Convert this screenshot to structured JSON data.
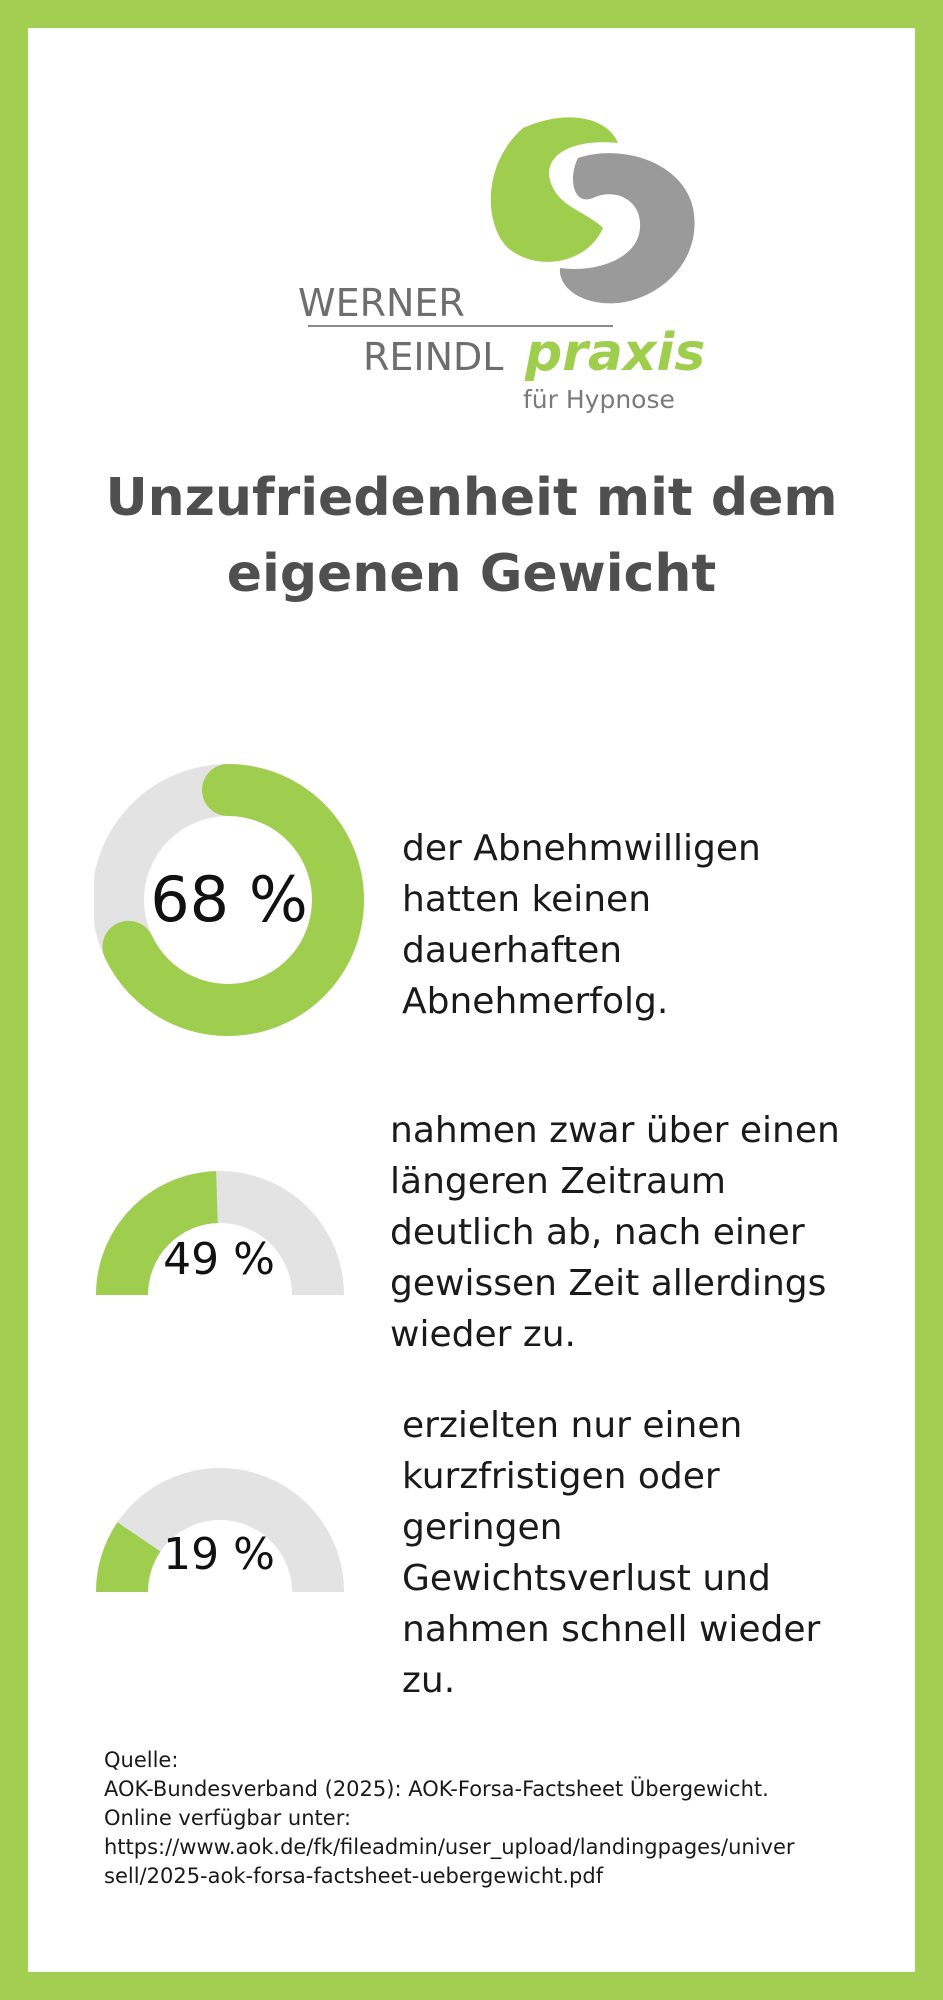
{
  "colors": {
    "border": "#a2cf52",
    "accent": "#9fce4f",
    "track": "#e3e3e3",
    "title": "#4f4f4f",
    "logo_gray": "#8a8a8a"
  },
  "logo": {
    "line1": "WERNER",
    "line2": "REINDL",
    "brand": "praxis",
    "tagline": "für Hypnose"
  },
  "title": {
    "line1": "Unzufriedenheit mit dem",
    "line2": "eigenen Gewicht"
  },
  "stats": [
    {
      "value": 68,
      "label": "68 %",
      "text": [
        "der Abnehmwilligen",
        "hatten keinen",
        "dauerhaften",
        "Abnehmerfolg."
      ]
    },
    {
      "value": 49,
      "label": "49 %",
      "text": [
        "nahmen zwar über einen",
        "längeren Zeitraum",
        "deutlich ab, nach einer",
        "gewissen Zeit allerdings",
        "wieder zu."
      ]
    },
    {
      "value": 19,
      "label": "19 %",
      "text": [
        "erzielten nur einen",
        "kurzfristigen oder",
        "geringen",
        "Gewichtsverlust und",
        "nahmen schnell wieder",
        "zu."
      ]
    }
  ],
  "source": {
    "heading": "Quelle:",
    "line1": "AOK-Bundesverband (2025): AOK-Forsa-Factsheet Übergewicht.",
    "line2": "Online verfügbar unter:",
    "line3": "https://www.aok.de/fk/fileadmin/user_upload/landingpages/univer",
    "line4": "sell/2025-aok-forsa-factsheet-uebergewicht.pdf"
  }
}
